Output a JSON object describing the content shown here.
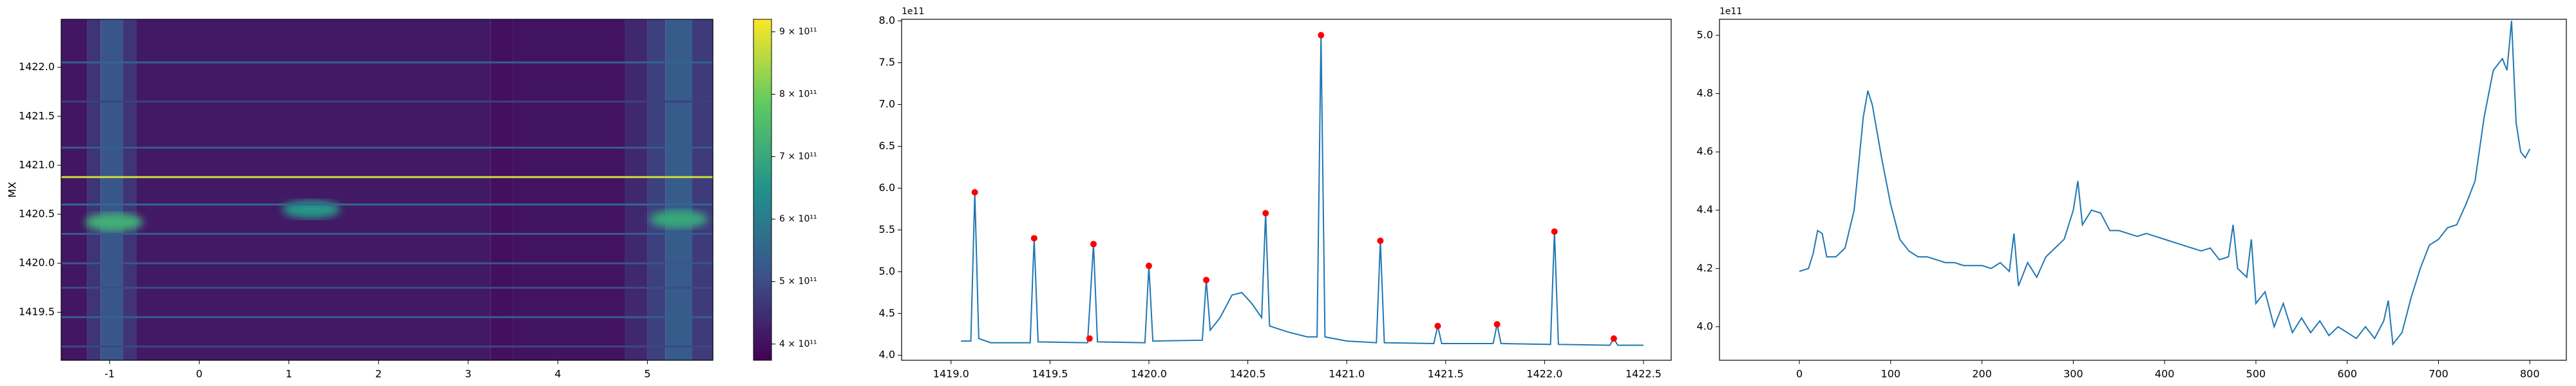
{
  "chart_data": [
    {
      "type": "heatmap",
      "ylabel": "MX",
      "xlim": [
        -1.54,
        5.73
      ],
      "ylim": [
        1419.01,
        1422.49
      ],
      "xticks": [
        -1,
        0,
        1,
        2,
        3,
        4,
        5
      ],
      "yticks": [
        {
          "value": 1419.5,
          "label": "1419.5"
        },
        {
          "value": 1420.0,
          "label": "1420.0"
        },
        {
          "value": 1420.5,
          "label": "1420.5"
        },
        {
          "value": 1421.0,
          "label": "1421.0"
        },
        {
          "value": 1421.5,
          "label": "1421.5"
        },
        {
          "value": 1422.0,
          "label": "1422.0"
        }
      ],
      "clim": [
        374000000000.0,
        920000000000.0
      ],
      "cticks": [
        {
          "value": 400000000000.0,
          "label": "4 × 10¹¹"
        },
        {
          "value": 500000000000.0,
          "label": "5 × 10¹¹"
        },
        {
          "value": 600000000000.0,
          "label": "6 × 10¹¹"
        },
        {
          "value": 700000000000.0,
          "label": "7 × 10¹¹"
        },
        {
          "value": 800000000000.0,
          "label": "8 × 10¹¹"
        },
        {
          "value": 900000000000.0,
          "label": "9 × 10¹¹"
        }
      ],
      "x_edges": [
        -1.54,
        -1.25,
        -1.1,
        -0.85,
        -0.7,
        3.25,
        3.5,
        4.75,
        5.0,
        5.2,
        5.5,
        5.73
      ],
      "column_values": [
        410000000000.0,
        460000000000.0,
        520000000000.0,
        460000000000.0,
        415000000000.0,
        400000000000.0,
        405000000000.0,
        440000000000.0,
        480000000000.0,
        530000000000.0,
        470000000000.0
      ],
      "line_y": [
        1422.05,
        1421.65,
        1421.18,
        1420.88,
        1420.6,
        1420.3,
        1420.0,
        1419.75,
        1419.45,
        1419.15
      ],
      "line_values": [
        550000000000.0,
        480000000000.0,
        530000000000.0,
        880000000000.0,
        560000000000.0,
        530000000000.0,
        520000000000.0,
        500000000000.0,
        540000000000.0,
        490000000000.0
      ],
      "spot_x": [
        -0.95,
        1.25,
        5.35
      ],
      "spot_y": [
        1420.42,
        1420.55,
        1420.45
      ],
      "spot_values": [
        720000000000.0,
        660000000000.0,
        700000000000.0
      ]
    },
    {
      "type": "line",
      "offset_label": "1e11",
      "xlim": [
        1418.75,
        1422.64
      ],
      "ylim": [
        3.94,
        8.02
      ],
      "xticks": [
        {
          "value": 1419,
          "label": "1419.0"
        },
        {
          "value": 1419.5,
          "label": "1419.5"
        },
        {
          "value": 1420,
          "label": "1420.0"
        },
        {
          "value": 1420.5,
          "label": "1420.5"
        },
        {
          "value": 1421,
          "label": "1421.0"
        },
        {
          "value": 1421.5,
          "label": "1421.5"
        },
        {
          "value": 1422,
          "label": "1422.0"
        },
        {
          "value": 1422.5,
          "label": "1422.5"
        }
      ],
      "yticks": [
        {
          "value": 4,
          "label": "4.0"
        },
        4.5,
        {
          "value": 5,
          "label": "5.0"
        },
        5.5,
        {
          "value": 6,
          "label": "6.0"
        },
        6.5,
        {
          "value": 7,
          "label": "7.0"
        },
        7.5,
        {
          "value": 8,
          "label": "8.0"
        }
      ],
      "series": [
        {
          "color": "#1f77b4",
          "x": [
            1419.05,
            1419.1,
            1419.12,
            1419.14,
            1419.2,
            1419.4,
            1419.42,
            1419.44,
            1419.69,
            1419.72,
            1419.74,
            1419.98,
            1420.0,
            1420.02,
            1420.27,
            1420.29,
            1420.31,
            1420.36,
            1420.42,
            1420.47,
            1420.52,
            1420.57,
            1420.59,
            1420.61,
            1420.7,
            1420.8,
            1420.85,
            1420.87,
            1420.89,
            1421.0,
            1421.15,
            1421.17,
            1421.19,
            1421.44,
            1421.46,
            1421.48,
            1421.74,
            1421.76,
            1421.78,
            1422.03,
            1422.05,
            1422.07,
            1422.33,
            1422.35,
            1422.37,
            1422.5
          ],
          "values": [
            4.17,
            4.17,
            5.95,
            4.2,
            4.15,
            4.15,
            5.4,
            4.16,
            4.15,
            5.33,
            4.16,
            4.15,
            5.07,
            4.17,
            4.18,
            4.9,
            4.3,
            4.45,
            4.72,
            4.75,
            4.62,
            4.45,
            5.7,
            4.35,
            4.28,
            4.22,
            4.22,
            7.83,
            4.22,
            4.17,
            4.15,
            5.37,
            4.15,
            4.14,
            4.35,
            4.14,
            4.14,
            4.37,
            4.14,
            4.13,
            5.48,
            4.13,
            4.12,
            4.2,
            4.12,
            4.12
          ]
        }
      ],
      "points": {
        "color": "#ff0000",
        "x": [
          1419.12,
          1419.42,
          1419.7,
          1419.72,
          1420.0,
          1420.29,
          1420.59,
          1420.87,
          1421.17,
          1421.46,
          1421.76,
          1422.05,
          1422.35
        ],
        "values": [
          5.95,
          5.4,
          4.2,
          5.33,
          5.07,
          4.9,
          5.7,
          7.83,
          5.37,
          4.35,
          4.37,
          5.48,
          4.2
        ]
      }
    },
    {
      "type": "line",
      "offset_label": "1e11",
      "xlim": [
        -87.5,
        840
      ],
      "ylim": [
        3.885,
        5.055
      ],
      "xticks": [
        0,
        100,
        200,
        300,
        400,
        500,
        600,
        700,
        800
      ],
      "yticks": [
        {
          "value": 4,
          "label": "4.0"
        },
        4.2,
        4.4,
        4.6,
        4.8,
        {
          "value": 5,
          "label": "5.0"
        }
      ],
      "series": [
        {
          "color": "#1f77b4",
          "x": [
            0,
            10,
            15,
            20,
            25,
            30,
            40,
            50,
            60,
            70,
            75,
            80,
            90,
            100,
            110,
            120,
            130,
            140,
            150,
            160,
            170,
            180,
            190,
            200,
            210,
            220,
            230,
            235,
            240,
            250,
            260,
            270,
            280,
            290,
            300,
            305,
            310,
            320,
            330,
            340,
            350,
            360,
            370,
            380,
            390,
            400,
            410,
            420,
            430,
            440,
            450,
            460,
            470,
            475,
            480,
            490,
            495,
            500,
            510,
            520,
            530,
            540,
            550,
            560,
            570,
            580,
            590,
            600,
            610,
            620,
            630,
            640,
            645,
            650,
            660,
            670,
            680,
            690,
            700,
            710,
            720,
            730,
            740,
            750,
            760,
            770,
            775,
            780,
            785,
            790,
            795,
            800
          ],
          "values": [
            4.19,
            4.2,
            4.25,
            4.33,
            4.32,
            4.24,
            4.24,
            4.27,
            4.4,
            4.72,
            4.81,
            4.76,
            4.58,
            4.42,
            4.3,
            4.26,
            4.24,
            4.24,
            4.23,
            4.22,
            4.22,
            4.21,
            4.21,
            4.21,
            4.2,
            4.22,
            4.19,
            4.32,
            4.14,
            4.22,
            4.17,
            4.24,
            4.27,
            4.3,
            4.4,
            4.5,
            4.35,
            4.4,
            4.39,
            4.33,
            4.33,
            4.32,
            4.31,
            4.32,
            4.31,
            4.3,
            4.29,
            4.28,
            4.27,
            4.26,
            4.27,
            4.23,
            4.24,
            4.35,
            4.2,
            4.17,
            4.3,
            4.08,
            4.12,
            4.0,
            4.08,
            3.98,
            4.03,
            3.98,
            4.02,
            3.97,
            4.0,
            3.98,
            3.96,
            4.0,
            3.96,
            4.02,
            4.09,
            3.94,
            3.98,
            4.1,
            4.2,
            4.28,
            4.3,
            4.34,
            4.35,
            4.42,
            4.5,
            4.72,
            4.88,
            4.92,
            4.88,
            5.05,
            4.7,
            4.6,
            4.58,
            4.61
          ]
        }
      ]
    }
  ]
}
